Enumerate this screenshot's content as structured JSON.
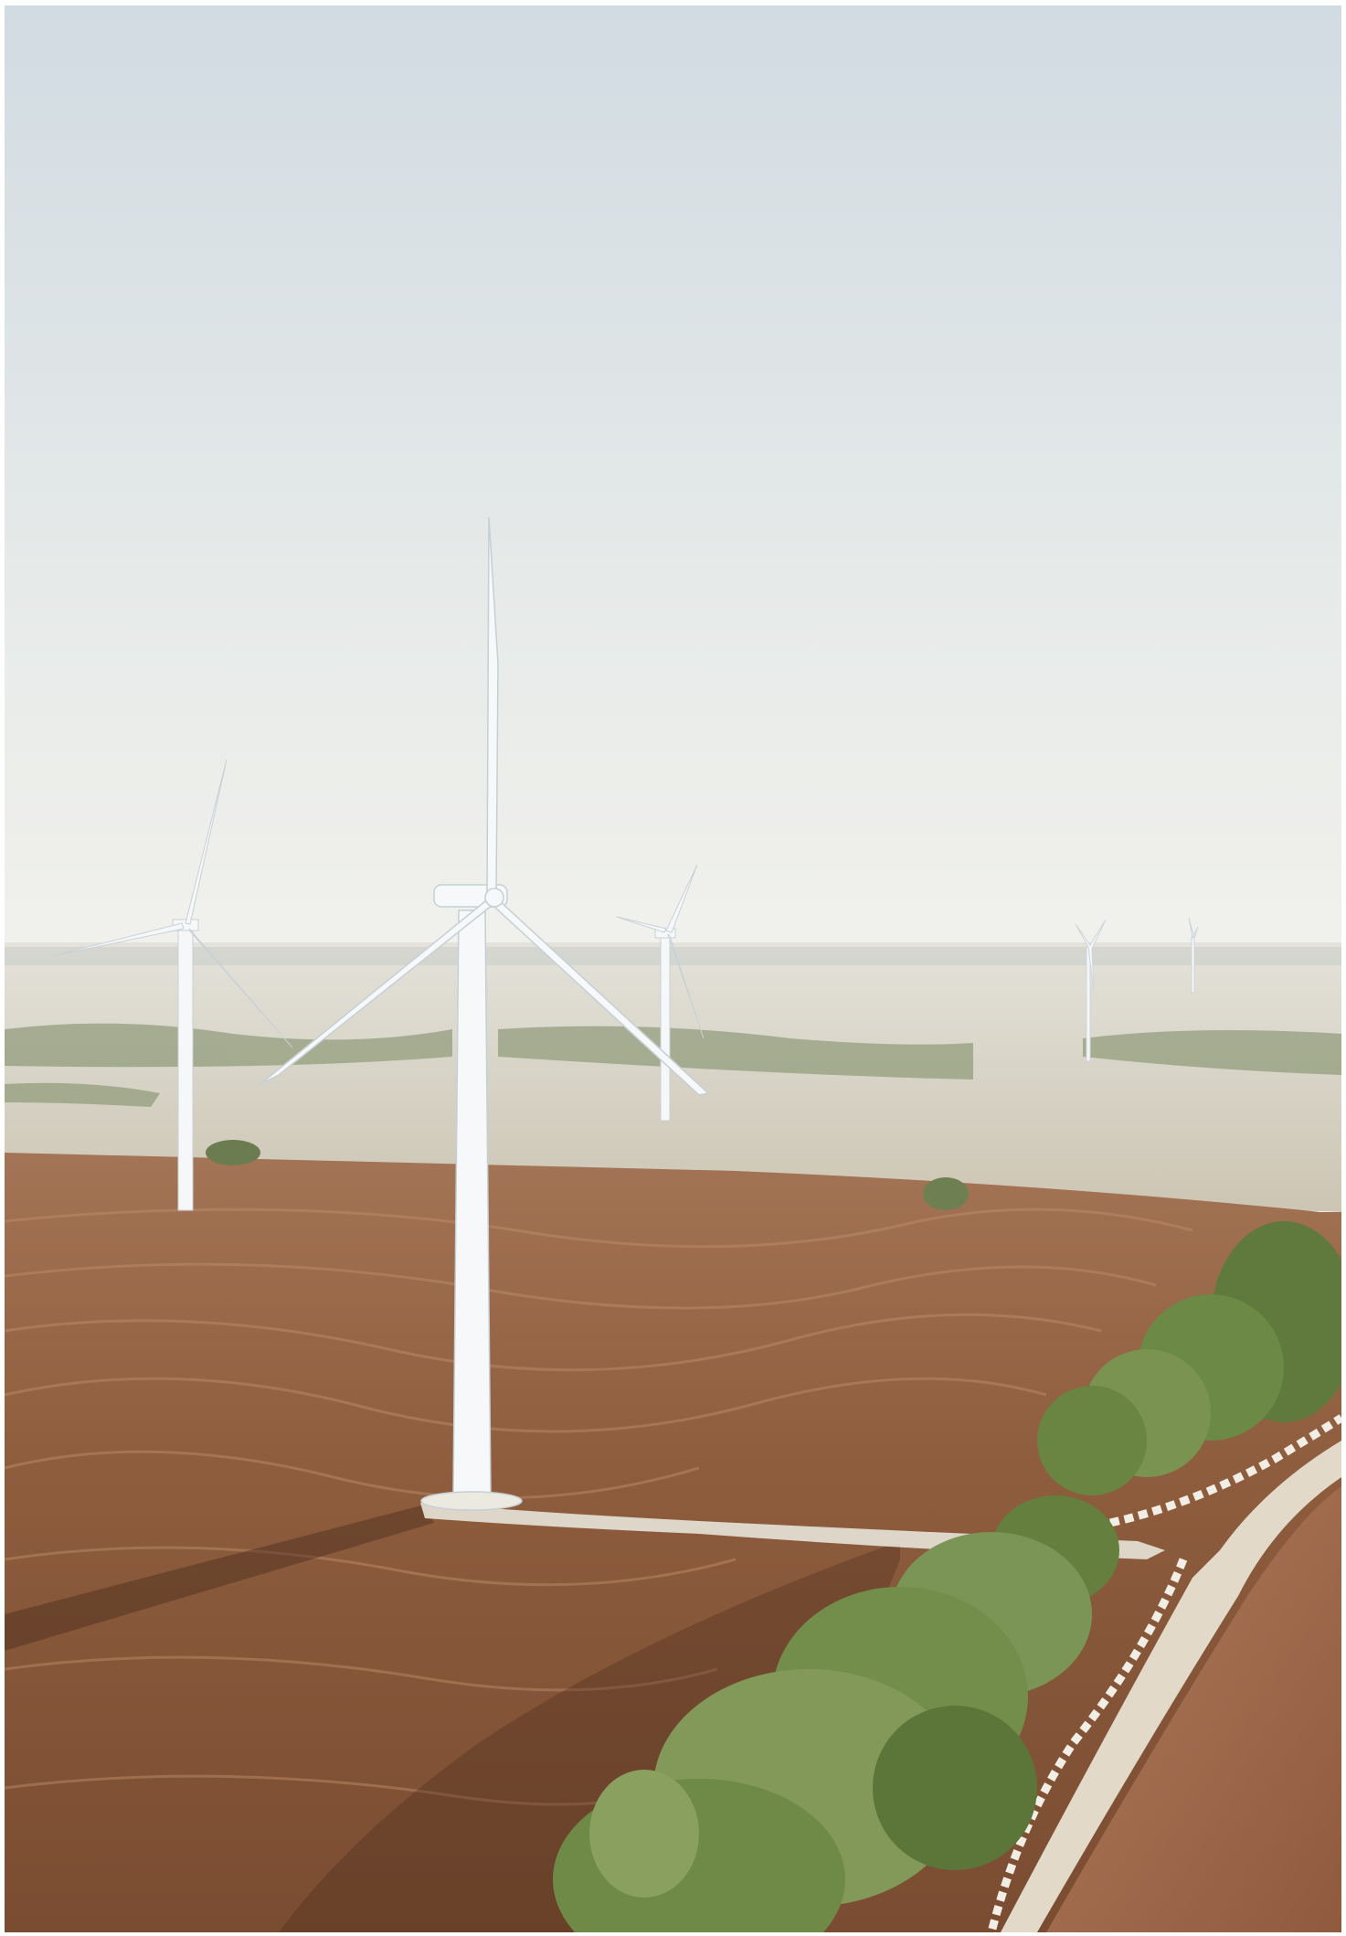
{
  "photo": {
    "subject": "wind-farm-landscape",
    "colors": {
      "sky_top": "#d3dde3",
      "sky_bottom": "#eff1ee",
      "plain": "#d9d6cb",
      "field": "#8a5a3c",
      "trees": "#6f8a4a",
      "turbine": "#f4f6f7"
    }
  }
}
